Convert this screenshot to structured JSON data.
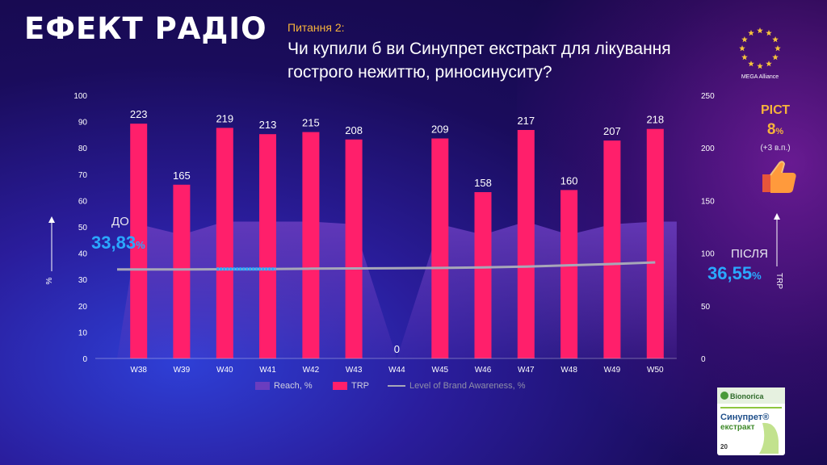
{
  "header": {
    "brand_title": "ЕФЕКТ РАДІО",
    "question_number": "Питання 2:",
    "question_text": "Чи купили б ви Синупрет екстракт для лікування гострого нежиттю, риносинуситу?"
  },
  "logo": {
    "caption": "MEGA Alliance",
    "icon": "eu-stars-icon"
  },
  "growth": {
    "title": "РІСТ",
    "value": "8",
    "unit": "%",
    "delta": "(+3 в.п.)",
    "icon": "thumbs-up-icon"
  },
  "before": {
    "label": "ДО",
    "value": "33,83",
    "unit": "%"
  },
  "after": {
    "label": "ПІСЛЯ",
    "value": "36,55",
    "unit": "%"
  },
  "product": {
    "brand": "Bionorica",
    "name": "Синупрет®",
    "subname": "екстракт",
    "count": "20"
  },
  "colors": {
    "trp": "#ff1f6b",
    "reach": "#6a3dbf",
    "awareness": "#a7a7b8",
    "accent": "#f6b33b",
    "highlight": "#2aa8ff"
  },
  "chart_data": {
    "type": "bar",
    "categories": [
      "W38",
      "W39",
      "W40",
      "W41",
      "W42",
      "W43",
      "W44",
      "W45",
      "W46",
      "W47",
      "W48",
      "W49",
      "W50"
    ],
    "series": [
      {
        "name": "TRP",
        "axis": "right",
        "type": "bar",
        "values": [
          223,
          165,
          219,
          213,
          215,
          208,
          0,
          209,
          158,
          217,
          160,
          207,
          218
        ]
      },
      {
        "name": "Reach, %",
        "axis": "left",
        "type": "area",
        "values": [
          51,
          47,
          52,
          52,
          52,
          51,
          0,
          51,
          47,
          52,
          47,
          51,
          52
        ]
      },
      {
        "name": "Level of Brand Awareness, %",
        "axis": "left",
        "type": "line",
        "values": [
          33.8,
          33.8,
          33.9,
          34.0,
          34.1,
          34.2,
          34.3,
          34.4,
          34.6,
          34.9,
          35.4,
          35.9,
          36.5
        ]
      }
    ],
    "data_labels": [
      "223",
      "165",
      "219",
      "213",
      "215",
      "208",
      "0",
      "209",
      "158",
      "217",
      "160",
      "207",
      "218"
    ],
    "left_axis": {
      "label": "%",
      "ticks": [
        "0",
        "10",
        "20",
        "30",
        "40",
        "50",
        "60",
        "70",
        "80",
        "90",
        "100"
      ],
      "range": [
        0,
        100
      ]
    },
    "right_axis": {
      "label": "TRP",
      "ticks": [
        "0",
        "50",
        "100",
        "150",
        "200",
        "250"
      ],
      "range": [
        0,
        250
      ]
    },
    "legend": [
      "Reach, %",
      "TRP",
      "Level of Brand Awareness, %"
    ],
    "legend_position": "bottom",
    "grid": false
  }
}
